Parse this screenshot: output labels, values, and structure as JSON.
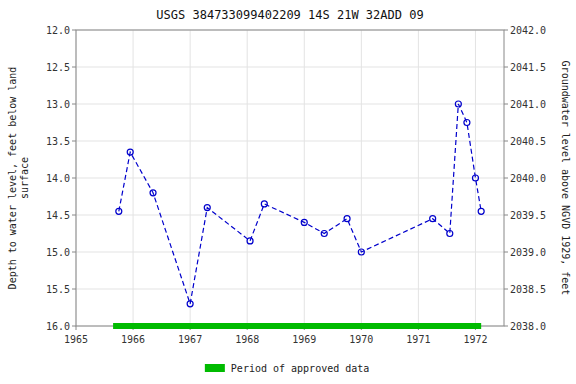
{
  "chart_data": {
    "type": "line",
    "title": "USGS 384733099402209 14S 21W 32ADD 09",
    "y_label": "Depth to water level, feet below land\nsurface",
    "y2_label": "Groundwater level above NGVD 1929, feet",
    "x": [
      1965.75,
      1965.95,
      1966.35,
      1967.0,
      1967.3,
      1968.05,
      1968.3,
      1969.0,
      1969.35,
      1969.75,
      1970.0,
      1971.25,
      1971.55,
      1971.7,
      1971.85,
      1972.0,
      1972.1
    ],
    "series": [
      {
        "color": "#0000cc",
        "line_style": "dashed",
        "marker": "circle",
        "values": [
          14.45,
          13.65,
          14.2,
          15.7,
          14.4,
          14.85,
          14.35,
          14.6,
          14.75,
          14.55,
          15.0,
          14.55,
          14.75,
          13.0,
          13.25,
          14.0,
          14.45
        ]
      }
    ],
    "xlim": [
      1965.0,
      1972.5
    ],
    "xticks": [
      1965,
      1966,
      1967,
      1968,
      1969,
      1970,
      1971,
      1972
    ],
    "ylim": [
      16.0,
      12.0
    ],
    "yticks": [
      {
        "value": 12.0,
        "label": "12.0"
      },
      {
        "value": 12.5,
        "label": "12.5"
      },
      {
        "value": 13.0,
        "label": "13.0"
      },
      {
        "value": 13.5,
        "label": "13.5"
      },
      {
        "value": 14.0,
        "label": "14.0"
      },
      {
        "value": 14.5,
        "label": "14.5"
      },
      {
        "value": 15.0,
        "label": "15.0"
      },
      {
        "value": 15.5,
        "label": "15.5"
      },
      {
        "value": 16.0,
        "label": "16.0"
      }
    ],
    "y2lim": [
      2038.0,
      2042.0
    ],
    "y2ticks": [
      {
        "value": 2042.0,
        "label": "2042.0"
      },
      {
        "value": 2041.5,
        "label": "2041.5"
      },
      {
        "value": 2041.0,
        "label": "2041.0"
      },
      {
        "value": 2040.5,
        "label": "2040.5"
      },
      {
        "value": 2040.0,
        "label": "2040.0"
      },
      {
        "value": 2039.5,
        "label": "2039.5"
      },
      {
        "value": 2039.0,
        "label": "2039.0"
      },
      {
        "value": 2038.5,
        "label": "2038.5"
      },
      {
        "value": 2038.0,
        "label": "2038.0"
      }
    ],
    "approved_period": {
      "name": "Period of approved data",
      "color": "#00bb00",
      "x": [
        1965.65,
        1972.1
      ]
    },
    "grid": true,
    "legend": "bottom"
  }
}
